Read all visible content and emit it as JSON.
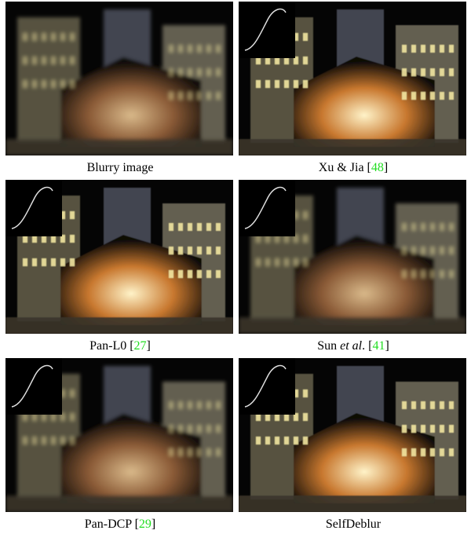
{
  "figure": {
    "panels": [
      {
        "caption": [
          {
            "text": "Blurry image",
            "style": "plain"
          }
        ],
        "kernel_inset": false,
        "sharp": false
      },
      {
        "caption": [
          {
            "text": "Xu & Jia [",
            "style": "plain"
          },
          {
            "text": "48",
            "style": "cite"
          },
          {
            "text": "]",
            "style": "plain"
          }
        ],
        "kernel_inset": true,
        "sharp": true
      },
      {
        "caption": [
          {
            "text": "Pan-L0 [",
            "style": "plain"
          },
          {
            "text": "27",
            "style": "cite"
          },
          {
            "text": "]",
            "style": "plain"
          }
        ],
        "kernel_inset": true,
        "sharp": true
      },
      {
        "caption": [
          {
            "text": "Sun ",
            "style": "plain"
          },
          {
            "text": "et al",
            "style": "italic"
          },
          {
            "text": ". [",
            "style": "plain"
          },
          {
            "text": "41",
            "style": "cite"
          },
          {
            "text": "]",
            "style": "plain"
          }
        ],
        "kernel_inset": true,
        "sharp": false
      },
      {
        "caption": [
          {
            "text": "Pan-DCP [",
            "style": "plain"
          },
          {
            "text": "29",
            "style": "cite"
          },
          {
            "text": "]",
            "style": "plain"
          }
        ],
        "kernel_inset": true,
        "sharp": false
      },
      {
        "caption": [
          {
            "text": "SelfDeblur",
            "style": "plain"
          }
        ],
        "kernel_inset": true,
        "sharp": true
      }
    ]
  }
}
